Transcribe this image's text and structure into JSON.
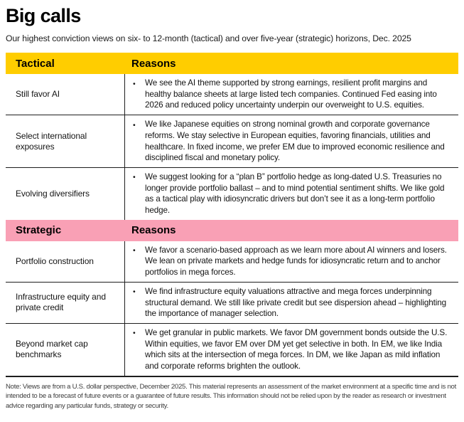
{
  "page": {
    "title": "Big calls",
    "subtitle": "Our highest conviction views on six- to 12-month (tactical) and over five-year (strategic) horizons, Dec. 2025"
  },
  "ui": {
    "bullet": "•"
  },
  "colors": {
    "tactical_header_bg": "#FFCD00",
    "strategic_header_bg": "#F9A0B5",
    "divider": "#1E1E1E",
    "footnote_text": "#3C3C3C"
  },
  "table": {
    "sections": [
      {
        "label": "Tactical",
        "reasons_label": "Reasons",
        "rows": [
          {
            "call": "Still favor AI",
            "reason": "We see the AI theme supported by strong earnings, resilient profit margins and healthy balance sheets at large listed tech companies. Continued Fed easing into 2026 and reduced policy uncertainty underpin our overweight to U.S. equities."
          },
          {
            "call": "Select international exposures",
            "reason": "We like Japanese equities on strong nominal growth and corporate governance reforms. We stay selective in European equities, favoring financials, utilities and healthcare. In fixed income, we prefer EM due to improved economic resilience and disciplined fiscal and monetary policy."
          },
          {
            "call": "Evolving diversifiers",
            "reason": "We suggest looking for a “plan B” portfolio hedge as long-dated U.S. Treasuries no longer provide portfolio ballast – and to mind potential sentiment shifts. We like gold as a tactical play with idiosyncratic drivers but don’t see it as a long-term portfolio hedge."
          }
        ]
      },
      {
        "label": "Strategic",
        "reasons_label": "Reasons",
        "rows": [
          {
            "call": "Portfolio construction",
            "reason": "We favor a scenario-based approach as we learn more about AI winners and losers. We lean on private markets and hedge funds for idiosyncratic return and to anchor portfolios in mega forces."
          },
          {
            "call": "Infrastructure equity and private credit",
            "reason": "We find infrastructure equity valuations attractive and mega forces underpinning structural demand. We still like private credit but see dispersion ahead – highlighting the importance of manager selection."
          },
          {
            "call": "Beyond market cap benchmarks",
            "reason": "We get granular in public markets. We favor DM government bonds outside the U.S. Within equities, we favor EM over DM yet get selective in both. In EM, we like India which sits at the intersection of mega forces. In DM, we like Japan as mild inflation and corporate reforms brighten the outlook."
          }
        ]
      }
    ]
  },
  "footnote": "Note: Views are from a U.S. dollar perspective, December 2025. This material represents an assessment of the market environment at a specific time and is not intended to be a forecast of future events or a guarantee of future results. This information should not be relied upon by the reader as research or investment advice regarding any particular funds, strategy or security."
}
